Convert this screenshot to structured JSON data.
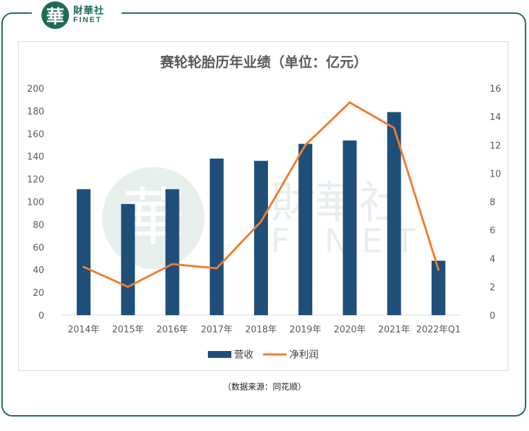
{
  "brand": {
    "seal_char": "華",
    "name_cn": "財華社",
    "name_en": "FINET",
    "color": "#1e6b5a"
  },
  "source_note": "（数据来源：同花顺）",
  "chart_data": {
    "type": "bar",
    "title": "赛轮轮胎历年业绩（单位：亿元）",
    "categories": [
      "2014年",
      "2015年",
      "2016年",
      "2017年",
      "2018年",
      "2019年",
      "2020年",
      "2021年",
      "2022年Q1"
    ],
    "series": [
      {
        "name": "营收",
        "type": "bar",
        "axis": "left",
        "color": "#1f4e79",
        "values": [
          111,
          98,
          111,
          138,
          136,
          151,
          154,
          179,
          48
        ]
      },
      {
        "name": "净利润",
        "type": "line",
        "axis": "right",
        "color": "#ed7d31",
        "values": [
          3.4,
          2.0,
          3.6,
          3.3,
          6.6,
          12.0,
          15.0,
          13.2,
          3.2
        ]
      }
    ],
    "y_left": {
      "min": 0,
      "max": 200,
      "ticks": [
        "0",
        "20",
        "40",
        "60",
        "80",
        "100",
        "120",
        "140",
        "160",
        "180",
        "200"
      ]
    },
    "y_right": {
      "min": 0,
      "max": 16,
      "ticks": [
        "0",
        "2",
        "4",
        "6",
        "8",
        "10",
        "12",
        "14",
        "16"
      ]
    },
    "legend_position": "bottom",
    "grid": false
  }
}
